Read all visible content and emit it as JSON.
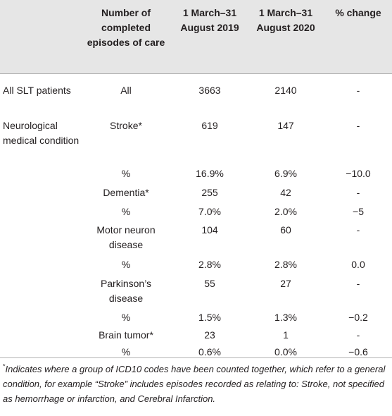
{
  "table": {
    "headers": [
      "",
      "Number of completed episodes of care",
      "1 March–31 August 2019",
      "1 March–31 August 2020",
      "% change"
    ],
    "rows": [
      [
        "All SLT patients",
        "All",
        "3663",
        "2140",
        "-"
      ],
      [
        "Neurological medical condition",
        "Stroke*",
        "619",
        "147",
        "-"
      ],
      [
        "",
        "%",
        "16.9%",
        "6.9%",
        "−10.0"
      ],
      [
        "",
        "Dementia*",
        "255",
        "42",
        "-"
      ],
      [
        "",
        "%",
        "7.0%",
        "2.0%",
        "−5"
      ],
      [
        "",
        "Motor neuron disease",
        "104",
        "60",
        "-"
      ],
      [
        "",
        "%",
        "2.8%",
        "2.8%",
        "0.0"
      ],
      [
        "",
        "Parkinson’s disease",
        "55",
        "27",
        "-"
      ],
      [
        "",
        "%",
        "1.5%",
        "1.3%",
        "−0.2"
      ],
      [
        "",
        "Brain tumor*",
        "23",
        "1",
        "-"
      ],
      [
        "",
        "%",
        "0.6%",
        "0.0%",
        "−0.6"
      ]
    ]
  },
  "footnote": {
    "marker": "*",
    "text": "Indicates where a group of ICD10 codes have been counted together, which refer to a general condition, for example “Stroke” includes episodes recorded as relating to: Stroke, not specified as hemorrhage or infarction, and Cerebral Infarction."
  }
}
